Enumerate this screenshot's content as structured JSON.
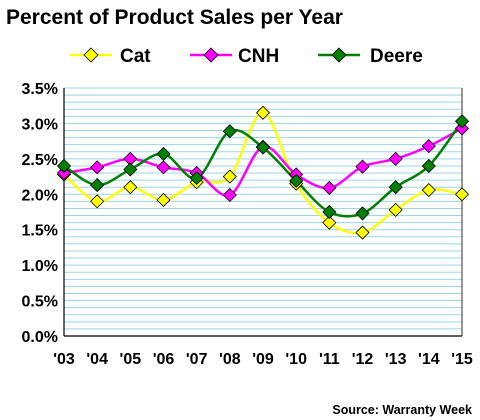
{
  "chart_data": {
    "type": "line",
    "title": "Percent of Product Sales per Year",
    "xlabel": "",
    "ylabel": "",
    "source": "Source: Warranty Week",
    "categories": [
      "'03",
      "'04",
      "'05",
      "'06",
      "'07",
      "'08",
      "'09",
      "'10",
      "'11",
      "'12",
      "'13",
      "'14",
      "'15"
    ],
    "ylim": [
      0,
      3.5
    ],
    "y_ticks": [
      "0.0%",
      "0.5%",
      "1.0%",
      "1.5%",
      "2.0%",
      "2.5%",
      "3.0%",
      "3.5%"
    ],
    "grid": true,
    "legend_position": "top",
    "series": [
      {
        "name": "Cat",
        "color": "#FFFF00",
        "values": [
          2.28,
          1.9,
          2.1,
          1.92,
          2.17,
          2.25,
          3.15,
          2.15,
          1.6,
          1.46,
          1.78,
          2.06,
          2.0
        ]
      },
      {
        "name": "CNH",
        "color": "#FF00FF",
        "values": [
          2.3,
          2.38,
          2.5,
          2.38,
          2.3,
          1.99,
          2.67,
          2.28,
          2.09,
          2.39,
          2.5,
          2.68,
          2.93
        ]
      },
      {
        "name": "Deere",
        "color": "#008000",
        "values": [
          2.4,
          2.13,
          2.35,
          2.57,
          2.23,
          2.89,
          2.66,
          2.19,
          1.75,
          1.73,
          2.1,
          2.4,
          3.03
        ]
      }
    ]
  }
}
